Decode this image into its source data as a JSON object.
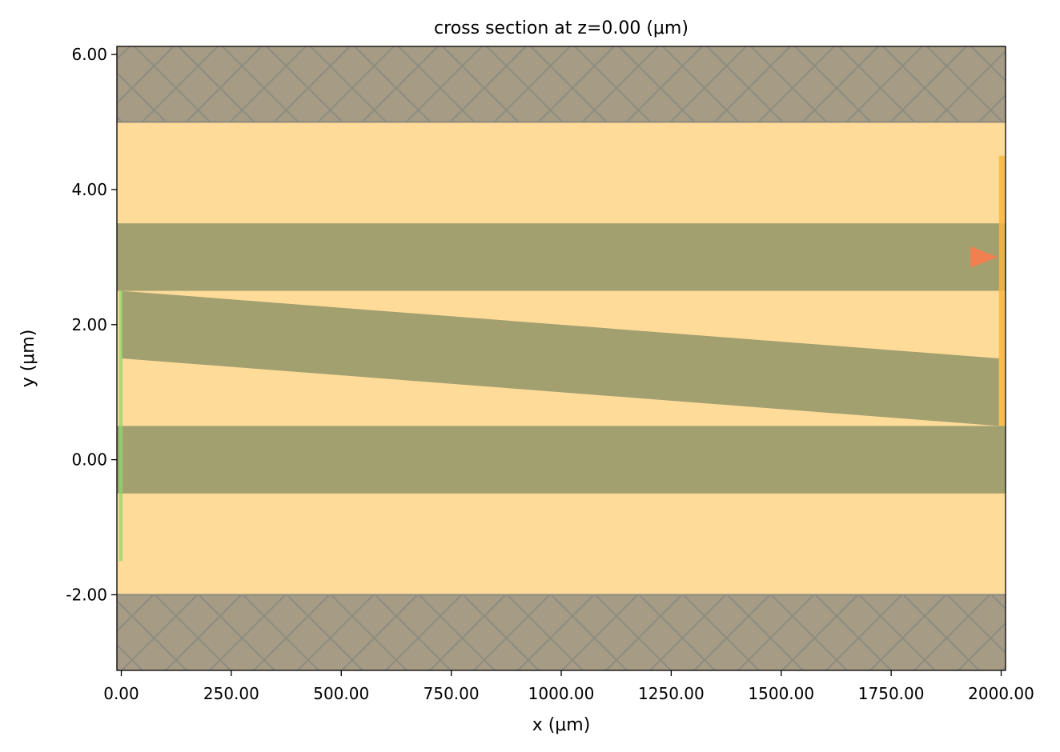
{
  "chart_data": {
    "type": "cross-section",
    "title": "cross section at z=0.00 (μm)",
    "xlabel": "x (μm)",
    "ylabel": "y (μm)",
    "xlim": [
      -10,
      2010
    ],
    "ylim": [
      -3.12,
      6.12
    ],
    "xticks": [
      0,
      250,
      500,
      750,
      1000,
      1250,
      1500,
      1750,
      2000
    ],
    "xtick_labels": [
      "0.00",
      "250.00",
      "500.00",
      "750.00",
      "1000.00",
      "1250.00",
      "1500.00",
      "1750.00",
      "2000.00"
    ],
    "yticks": [
      -2,
      0,
      2,
      4,
      6
    ],
    "ytick_labels": [
      "-2.00",
      "0.00",
      "2.00",
      "4.00",
      "6.00"
    ],
    "grid": false,
    "colors": {
      "background": "#fedb99",
      "structure": "#a3a070",
      "pml": "#a69b84",
      "pml_hatch": "#8c8c80",
      "source": "#8bd96a",
      "monitor": "#f8b63f",
      "arrow": "#f08050",
      "frame": "#000000"
    },
    "background_region": {
      "x": [
        -10,
        2010
      ],
      "y": [
        -3.12,
        6.12
      ]
    },
    "pml_regions": [
      {
        "name": "pml-top",
        "x": [
          -10,
          2010
        ],
        "y": [
          5.0,
          6.12
        ]
      },
      {
        "name": "pml-bottom",
        "x": [
          -10,
          2010
        ],
        "y": [
          -3.12,
          -2.0
        ]
      }
    ],
    "structures": [
      {
        "name": "waveguide-top",
        "shape": "rect",
        "x": [
          -10,
          2010
        ],
        "y": [
          2.5,
          3.5
        ]
      },
      {
        "name": "waveguide-bottom",
        "shape": "rect",
        "x": [
          -10,
          2010
        ],
        "y": [
          -0.5,
          0.5
        ]
      },
      {
        "name": "waveguide-taper",
        "shape": "polygon",
        "points": [
          [
            0,
            2.5
          ],
          [
            1995,
            1.5
          ],
          [
            1995,
            0.5
          ],
          [
            0,
            1.5
          ]
        ]
      }
    ],
    "overlays": [
      {
        "name": "source-plane",
        "kind": "source",
        "x": [
          -5,
          3
        ],
        "y": [
          -1.5,
          2.5
        ]
      },
      {
        "name": "monitor-plane",
        "kind": "monitor",
        "x": [
          1995,
          2008
        ],
        "y": [
          0.5,
          4.5
        ]
      }
    ],
    "arrow": {
      "name": "monitor-direction-arrow",
      "x": 1992,
      "y": 3.0,
      "direction": "+x",
      "length_x": 62,
      "half_width_y": 0.16
    }
  }
}
